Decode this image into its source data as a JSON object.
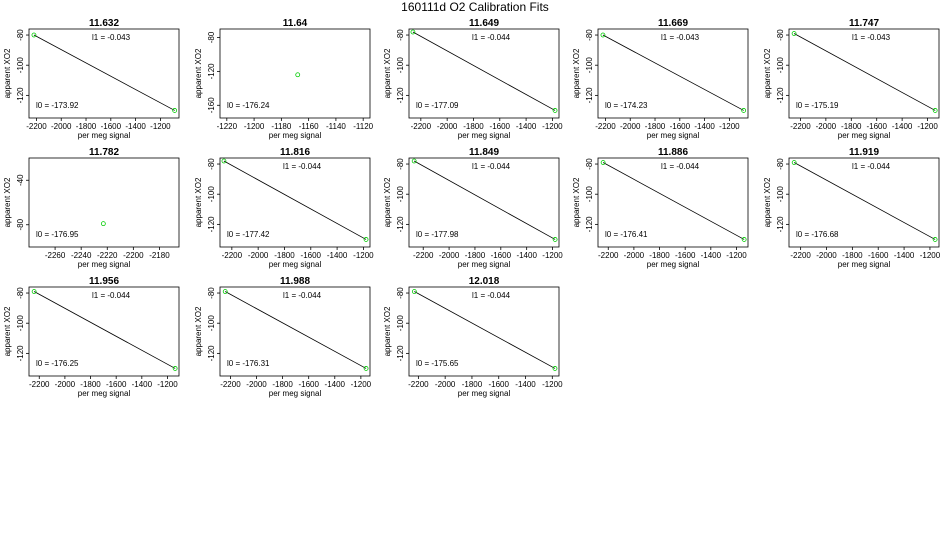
{
  "title": "160111d    O2 Calibration Fits",
  "colors": {
    "point": "#00cc00",
    "line": "#000000",
    "frame": "#000000"
  },
  "chart_data": [
    {
      "type": "scatter",
      "title": "11.632",
      "xlabel": "per meg signal",
      "ylabel": "apparent XO2",
      "xlim": [
        -2260,
        -1050
      ],
      "ylim": [
        -135,
        -76
      ],
      "xticks": [
        -2200,
        -2000,
        -1800,
        -1600,
        -1400,
        -1200
      ],
      "yticks": [
        -80,
        -100,
        -120
      ],
      "points": [
        {
          "x": -2220,
          "y": -80
        },
        {
          "x": -1085,
          "y": -130
        }
      ],
      "fit_line": [
        {
          "x": -2220,
          "y": -80
        },
        {
          "x": -1085,
          "y": -130
        }
      ],
      "annotations": {
        "l1": "l1 =  -0.043",
        "l0": "l0 =  -173.92"
      }
    },
    {
      "type": "scatter",
      "title": "11.64",
      "xlabel": "per meg signal",
      "ylabel": "apparent XO2",
      "xlim": [
        -1225,
        -1115
      ],
      "ylim": [
        -175,
        -70
      ],
      "xticks": [
        -1220,
        -1200,
        -1180,
        -1160,
        -1140,
        -1120
      ],
      "yticks": [
        -80,
        -120,
        -160
      ],
      "points": [
        {
          "x": -1168,
          "y": -124
        }
      ],
      "fit_line": [],
      "annotations": {
        "l1": "",
        "l0": "l0 =  -176.24"
      }
    },
    {
      "type": "scatter",
      "title": "11.649",
      "xlabel": "per meg signal",
      "ylabel": "apparent XO2",
      "xlim": [
        -2290,
        -1150
      ],
      "ylim": [
        -135,
        -76
      ],
      "xticks": [
        -2200,
        -2000,
        -1800,
        -1600,
        -1400,
        -1200
      ],
      "yticks": [
        -80,
        -100,
        -120
      ],
      "points": [
        {
          "x": -2260,
          "y": -78
        },
        {
          "x": -1180,
          "y": -130
        }
      ],
      "fit_line": [
        {
          "x": -2260,
          "y": -78
        },
        {
          "x": -1180,
          "y": -130
        }
      ],
      "annotations": {
        "l1": "l1 =  -0.044",
        "l0": "l0 =  -177.09"
      }
    },
    {
      "type": "scatter",
      "title": "11.669",
      "xlabel": "per meg signal",
      "ylabel": "apparent XO2",
      "xlim": [
        -2260,
        -1050
      ],
      "ylim": [
        -135,
        -76
      ],
      "xticks": [
        -2200,
        -2000,
        -1800,
        -1600,
        -1400,
        -1200
      ],
      "yticks": [
        -80,
        -100,
        -120
      ],
      "points": [
        {
          "x": -2220,
          "y": -80
        },
        {
          "x": -1085,
          "y": -130
        }
      ],
      "fit_line": [
        {
          "x": -2220,
          "y": -80
        },
        {
          "x": -1085,
          "y": -130
        }
      ],
      "annotations": {
        "l1": "l1 =  -0.043",
        "l0": "l0 =  -174.23"
      }
    },
    {
      "type": "scatter",
      "title": "11.747",
      "xlabel": "per meg signal",
      "ylabel": "apparent XO2",
      "xlim": [
        -2290,
        -1110
      ],
      "ylim": [
        -135,
        -76
      ],
      "xticks": [
        -2200,
        -2000,
        -1800,
        -1600,
        -1400,
        -1200
      ],
      "yticks": [
        -80,
        -100,
        -120
      ],
      "points": [
        {
          "x": -2250,
          "y": -79
        },
        {
          "x": -1140,
          "y": -130
        }
      ],
      "fit_line": [
        {
          "x": -2250,
          "y": -79
        },
        {
          "x": -1140,
          "y": -130
        }
      ],
      "annotations": {
        "l1": "l1 =  -0.043",
        "l0": "l0 =  -175.19"
      }
    },
    {
      "type": "scatter",
      "title": "11.782",
      "xlabel": "per meg signal",
      "ylabel": "apparent XO2",
      "xlim": [
        -2280,
        -2165
      ],
      "ylim": [
        -100,
        -20
      ],
      "xticks": [
        -2260,
        -2240,
        -2220,
        -2200,
        -2180
      ],
      "yticks": [
        -40,
        -80
      ],
      "points": [
        {
          "x": -2223,
          "y": -79
        }
      ],
      "fit_line": [],
      "annotations": {
        "l1": "",
        "l0": "l0 =  -176.95"
      }
    },
    {
      "type": "scatter",
      "title": "11.816",
      "xlabel": "per meg signal",
      "ylabel": "apparent XO2",
      "xlim": [
        -2290,
        -1150
      ],
      "ylim": [
        -135,
        -76
      ],
      "xticks": [
        -2200,
        -2000,
        -1800,
        -1600,
        -1400,
        -1200
      ],
      "yticks": [
        -80,
        -100,
        -120
      ],
      "points": [
        {
          "x": -2260,
          "y": -78
        },
        {
          "x": -1180,
          "y": -130
        }
      ],
      "fit_line": [
        {
          "x": -2260,
          "y": -78
        },
        {
          "x": -1180,
          "y": -130
        }
      ],
      "annotations": {
        "l1": "l1 =  -0.044",
        "l0": "l0 =  -177.42"
      }
    },
    {
      "type": "scatter",
      "title": "11.849",
      "xlabel": "per meg signal",
      "ylabel": "apparent XO2",
      "xlim": [
        -2310,
        -1150
      ],
      "ylim": [
        -135,
        -76
      ],
      "xticks": [
        -2200,
        -2000,
        -1800,
        -1600,
        -1400,
        -1200
      ],
      "yticks": [
        -80,
        -100,
        -120
      ],
      "points": [
        {
          "x": -2270,
          "y": -78
        },
        {
          "x": -1180,
          "y": -130
        }
      ],
      "fit_line": [
        {
          "x": -2270,
          "y": -78
        },
        {
          "x": -1180,
          "y": -130
        }
      ],
      "annotations": {
        "l1": "l1 =  -0.044",
        "l0": "l0 =  -177.98"
      }
    },
    {
      "type": "scatter",
      "title": "11.886",
      "xlabel": "per meg signal",
      "ylabel": "apparent XO2",
      "xlim": [
        -2280,
        -1110
      ],
      "ylim": [
        -135,
        -76
      ],
      "xticks": [
        -2200,
        -2000,
        -1800,
        -1600,
        -1400,
        -1200
      ],
      "yticks": [
        -80,
        -100,
        -120
      ],
      "points": [
        {
          "x": -2240,
          "y": -79
        },
        {
          "x": -1140,
          "y": -130
        }
      ],
      "fit_line": [
        {
          "x": -2240,
          "y": -79
        },
        {
          "x": -1140,
          "y": -130
        }
      ],
      "annotations": {
        "l1": "l1 =  -0.044",
        "l0": "l0 =  -176.41"
      }
    },
    {
      "type": "scatter",
      "title": "11.919",
      "xlabel": "per meg signal",
      "ylabel": "apparent XO2",
      "xlim": [
        -2290,
        -1130
      ],
      "ylim": [
        -135,
        -76
      ],
      "xticks": [
        -2200,
        -2000,
        -1800,
        -1600,
        -1400,
        -1200
      ],
      "yticks": [
        -80,
        -100,
        -120
      ],
      "points": [
        {
          "x": -2250,
          "y": -79
        },
        {
          "x": -1160,
          "y": -130
        }
      ],
      "fit_line": [
        {
          "x": -2250,
          "y": -79
        },
        {
          "x": -1160,
          "y": -130
        }
      ],
      "annotations": {
        "l1": "l1 =  -0.044",
        "l0": "l0 =  -176.68"
      }
    },
    {
      "type": "scatter",
      "title": "11.956",
      "xlabel": "per meg signal",
      "ylabel": "apparent XO2",
      "xlim": [
        -2280,
        -1110
      ],
      "ylim": [
        -135,
        -76
      ],
      "xticks": [
        -2200,
        -2000,
        -1800,
        -1600,
        -1400,
        -1200
      ],
      "yticks": [
        -80,
        -100,
        -120
      ],
      "points": [
        {
          "x": -2240,
          "y": -79
        },
        {
          "x": -1140,
          "y": -130
        }
      ],
      "fit_line": [
        {
          "x": -2240,
          "y": -79
        },
        {
          "x": -1140,
          "y": -130
        }
      ],
      "annotations": {
        "l1": "l1 =  -0.044",
        "l0": "l0 =  -176.25"
      }
    },
    {
      "type": "scatter",
      "title": "11.988",
      "xlabel": "per meg signal",
      "ylabel": "apparent XO2",
      "xlim": [
        -2280,
        -1130
      ],
      "ylim": [
        -135,
        -76
      ],
      "xticks": [
        -2200,
        -2000,
        -1800,
        -1600,
        -1400,
        -1200
      ],
      "yticks": [
        -80,
        -100,
        -120
      ],
      "points": [
        {
          "x": -2240,
          "y": -79
        },
        {
          "x": -1160,
          "y": -130
        }
      ],
      "fit_line": [
        {
          "x": -2240,
          "y": -79
        },
        {
          "x": -1160,
          "y": -130
        }
      ],
      "annotations": {
        "l1": "l1 =  -0.044",
        "l0": "l0 =  -176.31"
      }
    },
    {
      "type": "scatter",
      "title": "12.018",
      "xlabel": "per meg signal",
      "ylabel": "apparent XO2",
      "xlim": [
        -2270,
        -1150
      ],
      "ylim": [
        -135,
        -76
      ],
      "xticks": [
        -2200,
        -2000,
        -1800,
        -1600,
        -1400,
        -1200
      ],
      "yticks": [
        -80,
        -100,
        -120
      ],
      "points": [
        {
          "x": -2230,
          "y": -79
        },
        {
          "x": -1180,
          "y": -130
        }
      ],
      "fit_line": [
        {
          "x": -2230,
          "y": -79
        },
        {
          "x": -1180,
          "y": -130
        }
      ],
      "annotations": {
        "l1": "l1 =  -0.044",
        "l0": "l0 =  -175.65"
      }
    }
  ]
}
